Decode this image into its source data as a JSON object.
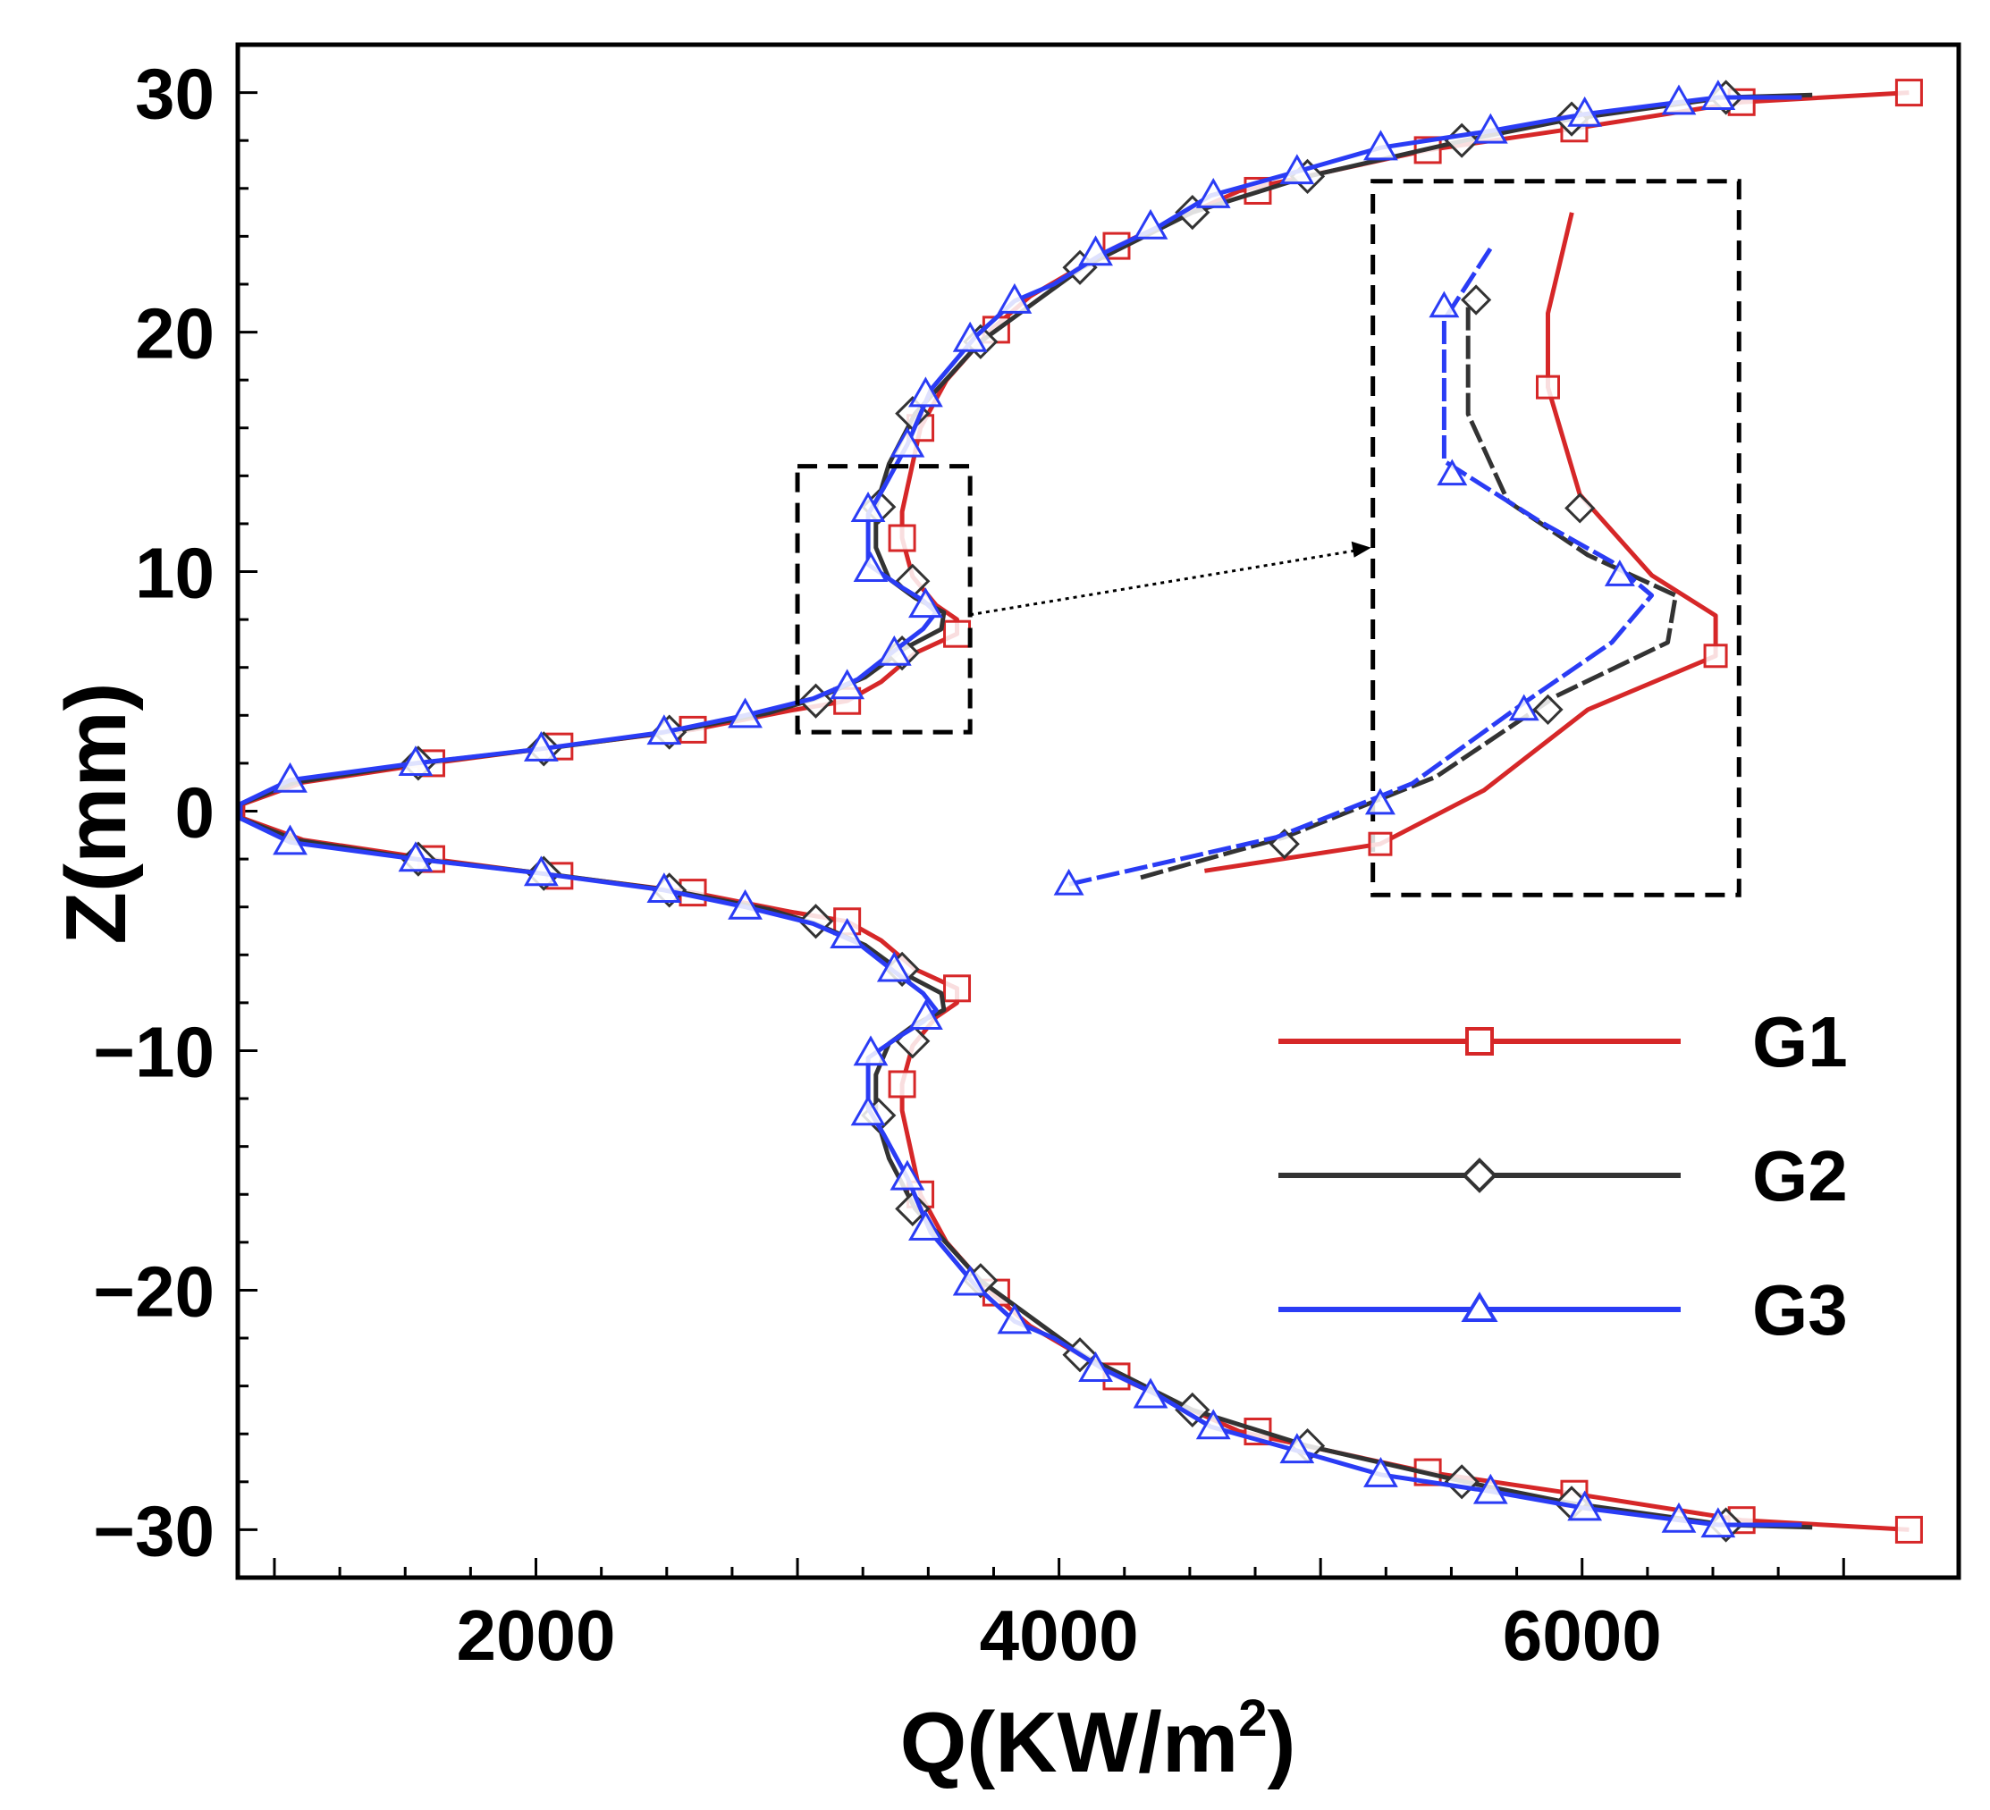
{
  "chart_data": {
    "type": "line",
    "xlabel": "Q(KW/m",
    "xlabel_superscript": "2",
    "xlabel_close": ")",
    "ylabel": "Z(mm)",
    "xlim": [
      860,
      7440
    ],
    "ylim": [
      -32,
      32
    ],
    "x_ticks": [
      2000,
      4000,
      6000
    ],
    "x_tick_labels": [
      "2000",
      "4000",
      "6000"
    ],
    "y_ticks": [
      30,
      20,
      10,
      0,
      -10,
      -20,
      -30
    ],
    "y_tick_labels": [
      "30",
      "20",
      "10",
      "0",
      "-10",
      "-20",
      "-30"
    ],
    "y_tick_display": [
      "30",
      "20",
      "10",
      "0",
      "−10",
      "−20",
      "−30"
    ],
    "legend_position": "right-middle",
    "inset": {
      "source_box": {
        "x": [
          3000,
          3660
        ],
        "z": [
          3.3,
          14.4
        ]
      },
      "target_box": {
        "x": [
          5200,
          6600
        ],
        "z": [
          -3.5,
          26.3
        ]
      },
      "note": "zoomed view of the near-wall peak region, same three series"
    },
    "series": [
      {
        "name": "G1",
        "color": "#d62728",
        "marker": "square",
        "points": [
          [
            7250,
            -30
          ],
          [
            6610,
            -29.6
          ],
          [
            5970,
            -28.5
          ],
          [
            5410,
            -27.6
          ],
          [
            4690,
            -25.9
          ],
          [
            4220,
            -23.6
          ],
          [
            3890,
            -21.5
          ],
          [
            3740,
            -20.1
          ],
          [
            3570,
            -18
          ],
          [
            3470,
            -16
          ],
          [
            3430,
            -14
          ],
          [
            3400,
            -12.5
          ],
          [
            3400,
            -11.4
          ],
          [
            3440,
            -9.8
          ],
          [
            3530,
            -8.6
          ],
          [
            3610,
            -8
          ],
          [
            3610,
            -7.4
          ],
          [
            3450,
            -6.6
          ],
          [
            3320,
            -5.4
          ],
          [
            3190,
            -4.6
          ],
          [
            2970,
            -4.2
          ],
          [
            2600,
            -3.4
          ],
          [
            2090,
            -2.7
          ],
          [
            1600,
            -2
          ],
          [
            1110,
            -1.2
          ],
          [
            880,
            -0.3
          ],
          [
            880,
            0.3
          ],
          [
            1110,
            1.2
          ],
          [
            1600,
            2
          ],
          [
            2090,
            2.7
          ],
          [
            2600,
            3.4
          ],
          [
            2970,
            4.2
          ],
          [
            3190,
            4.6
          ],
          [
            3320,
            5.4
          ],
          [
            3450,
            6.6
          ],
          [
            3610,
            7.4
          ],
          [
            3610,
            8
          ],
          [
            3530,
            8.6
          ],
          [
            3440,
            9.8
          ],
          [
            3400,
            11.4
          ],
          [
            3400,
            12.5
          ],
          [
            3430,
            14
          ],
          [
            3470,
            16
          ],
          [
            3570,
            18
          ],
          [
            3740,
            20.1
          ],
          [
            3890,
            21.5
          ],
          [
            4220,
            23.6
          ],
          [
            4690,
            25.9
          ],
          [
            5410,
            27.6
          ],
          [
            5970,
            28.5
          ],
          [
            6610,
            29.6
          ],
          [
            7250,
            30
          ]
        ],
        "markers": [
          [
            7250,
            -30
          ],
          [
            6610,
            -29.6
          ],
          [
            5970,
            -28.5
          ],
          [
            5410,
            -27.6
          ],
          [
            4760,
            -25.9
          ],
          [
            4220,
            -23.6
          ],
          [
            3760,
            -20.1
          ],
          [
            3470,
            -16
          ],
          [
            3400,
            -11.4
          ],
          [
            3610,
            -7.4
          ],
          [
            3190,
            -4.6
          ],
          [
            2600,
            -3.4
          ],
          [
            2090,
            -2.7
          ],
          [
            1600,
            -2
          ],
          [
            1600,
            2
          ],
          [
            2090,
            2.7
          ],
          [
            2600,
            3.4
          ],
          [
            3190,
            4.6
          ],
          [
            3610,
            7.4
          ],
          [
            3400,
            11.4
          ],
          [
            3470,
            16
          ],
          [
            3760,
            20.1
          ],
          [
            4220,
            23.6
          ],
          [
            4760,
            25.9
          ],
          [
            5410,
            27.6
          ],
          [
            5970,
            28.5
          ],
          [
            6610,
            29.6
          ],
          [
            7250,
            30
          ]
        ]
      },
      {
        "name": "G2",
        "color": "#333333",
        "marker": "diamond",
        "points": [
          [
            6880,
            -29.9
          ],
          [
            6550,
            -29.8
          ],
          [
            5960,
            -28.9
          ],
          [
            5550,
            -28
          ],
          [
            4950,
            -26.5
          ],
          [
            4510,
            -25
          ],
          [
            4090,
            -22.7
          ],
          [
            3700,
            -19.6
          ],
          [
            3450,
            -16.6
          ],
          [
            3350,
            -14.5
          ],
          [
            3300,
            -12.7
          ],
          [
            3300,
            -11
          ],
          [
            3350,
            -9.7
          ],
          [
            3450,
            -8.9
          ],
          [
            3560,
            -8.3
          ],
          [
            3550,
            -7.6
          ],
          [
            3410,
            -6.8
          ],
          [
            3260,
            -5.6
          ],
          [
            3070,
            -4.7
          ],
          [
            2890,
            -4.1
          ],
          [
            2510,
            -3.3
          ],
          [
            2030,
            -2.6
          ],
          [
            1550,
            -2
          ],
          [
            1080,
            -1.2
          ],
          [
            870,
            -0.3
          ],
          [
            870,
            0.3
          ],
          [
            1080,
            1.2
          ],
          [
            1550,
            2
          ],
          [
            2030,
            2.6
          ],
          [
            2510,
            3.3
          ],
          [
            2890,
            4.1
          ],
          [
            3070,
            4.7
          ],
          [
            3260,
            5.6
          ],
          [
            3410,
            6.8
          ],
          [
            3550,
            7.6
          ],
          [
            3560,
            8.3
          ],
          [
            3450,
            8.9
          ],
          [
            3350,
            9.7
          ],
          [
            3300,
            11
          ],
          [
            3300,
            12.7
          ],
          [
            3350,
            14.5
          ],
          [
            3450,
            16.6
          ],
          [
            3700,
            19.6
          ],
          [
            4090,
            22.7
          ],
          [
            4510,
            25
          ],
          [
            4950,
            26.5
          ],
          [
            5550,
            28
          ],
          [
            5960,
            28.9
          ],
          [
            6550,
            29.8
          ],
          [
            6880,
            29.9
          ]
        ],
        "markers": [
          [
            6550,
            -29.8
          ],
          [
            5960,
            -28.9
          ],
          [
            5540,
            -28
          ],
          [
            4950,
            -26.5
          ],
          [
            4510,
            -25
          ],
          [
            4080,
            -22.7
          ],
          [
            3700,
            -19.6
          ],
          [
            3440,
            -16.6
          ],
          [
            3310,
            -12.7
          ],
          [
            3440,
            -9.6
          ],
          [
            3400,
            -6.6
          ],
          [
            3070,
            -4.6
          ],
          [
            2510,
            -3.3
          ],
          [
            2030,
            -2.6
          ],
          [
            1550,
            -2
          ],
          [
            1550,
            2
          ],
          [
            2030,
            2.6
          ],
          [
            2510,
            3.3
          ],
          [
            3070,
            4.6
          ],
          [
            3400,
            6.6
          ],
          [
            3440,
            9.6
          ],
          [
            3310,
            12.7
          ],
          [
            3440,
            16.6
          ],
          [
            3700,
            19.6
          ],
          [
            4080,
            22.7
          ],
          [
            4510,
            25
          ],
          [
            4950,
            26.5
          ],
          [
            5540,
            28
          ],
          [
            5960,
            28.9
          ],
          [
            6550,
            29.8
          ]
        ]
      },
      {
        "name": "G3",
        "color": "#2a3cf5",
        "marker": "triangle",
        "points": [
          [
            6840,
            -29.8
          ],
          [
            6520,
            -29.8
          ],
          [
            6370,
            -29.6
          ],
          [
            6010,
            -29.1
          ],
          [
            5650,
            -28.4
          ],
          [
            5230,
            -27.7
          ],
          [
            4910,
            -26.7
          ],
          [
            4580,
            -25.7
          ],
          [
            4380,
            -24.4
          ],
          [
            4170,
            -23.3
          ],
          [
            3980,
            -22
          ],
          [
            3830,
            -21.3
          ],
          [
            3680,
            -19.8
          ],
          [
            3510,
            -17.6
          ],
          [
            3420,
            -15.3
          ],
          [
            3330,
            -13.5
          ],
          [
            3270,
            -12.4
          ],
          [
            3270,
            -10.3
          ],
          [
            3390,
            -9.4
          ],
          [
            3480,
            -8.8
          ],
          [
            3530,
            -8.3
          ],
          [
            3480,
            -7.6
          ],
          [
            3370,
            -6.7
          ],
          [
            3230,
            -5.5
          ],
          [
            3060,
            -4.7
          ],
          [
            2800,
            -4
          ],
          [
            2490,
            -3.3
          ],
          [
            2020,
            -2.6
          ],
          [
            1540,
            -2
          ],
          [
            1060,
            -1.3
          ],
          [
            870,
            -0.3
          ],
          [
            870,
            0.3
          ],
          [
            1060,
            1.3
          ],
          [
            1540,
            2
          ],
          [
            2020,
            2.6
          ],
          [
            2490,
            3.3
          ],
          [
            2800,
            4
          ],
          [
            3060,
            4.7
          ],
          [
            3230,
            5.5
          ],
          [
            3370,
            6.7
          ],
          [
            3480,
            7.6
          ],
          [
            3530,
            8.3
          ],
          [
            3480,
            8.8
          ],
          [
            3390,
            9.4
          ],
          [
            3270,
            10.3
          ],
          [
            3270,
            12.4
          ],
          [
            3330,
            13.5
          ],
          [
            3420,
            15.3
          ],
          [
            3510,
            17.6
          ],
          [
            3680,
            19.8
          ],
          [
            3830,
            21.3
          ],
          [
            3980,
            22
          ],
          [
            4170,
            23.3
          ],
          [
            4380,
            24.4
          ],
          [
            4580,
            25.7
          ],
          [
            4910,
            26.7
          ],
          [
            5230,
            27.7
          ],
          [
            5650,
            28.4
          ],
          [
            6010,
            29.1
          ],
          [
            6370,
            29.6
          ],
          [
            6520,
            29.8
          ],
          [
            6840,
            29.8
          ]
        ],
        "markers": [
          [
            6520,
            -29.8
          ],
          [
            6370,
            -29.6
          ],
          [
            6010,
            -29.1
          ],
          [
            5650,
            -28.4
          ],
          [
            5230,
            -27.7
          ],
          [
            4910,
            -26.7
          ],
          [
            4590,
            -25.7
          ],
          [
            4350,
            -24.4
          ],
          [
            4140,
            -23.3
          ],
          [
            3830,
            -21.3
          ],
          [
            3660,
            -19.7
          ],
          [
            3490,
            -17.4
          ],
          [
            3420,
            -15.3
          ],
          [
            3270,
            -12.6
          ],
          [
            3280,
            -10.1
          ],
          [
            3490,
            -8.6
          ],
          [
            3370,
            -6.6
          ],
          [
            3190,
            -5.2
          ],
          [
            2800,
            -4
          ],
          [
            2490,
            -3.3
          ],
          [
            2020,
            -2.6
          ],
          [
            1540,
            -2
          ],
          [
            1060,
            -1.3
          ],
          [
            1060,
            1.3
          ],
          [
            1540,
            2
          ],
          [
            2020,
            2.6
          ],
          [
            2490,
            3.3
          ],
          [
            2800,
            4
          ],
          [
            3190,
            5.2
          ],
          [
            3370,
            6.6
          ],
          [
            3490,
            8.6
          ],
          [
            3280,
            10.1
          ],
          [
            3270,
            12.6
          ],
          [
            3420,
            15.3
          ],
          [
            3490,
            17.4
          ],
          [
            3660,
            19.7
          ],
          [
            3830,
            21.3
          ],
          [
            4140,
            23.3
          ],
          [
            4350,
            24.4
          ],
          [
            4590,
            25.7
          ],
          [
            4910,
            26.7
          ],
          [
            5230,
            27.7
          ],
          [
            5650,
            28.4
          ],
          [
            6010,
            29.1
          ],
          [
            6370,
            29.6
          ],
          [
            6520,
            29.8
          ]
        ]
      }
    ]
  }
}
